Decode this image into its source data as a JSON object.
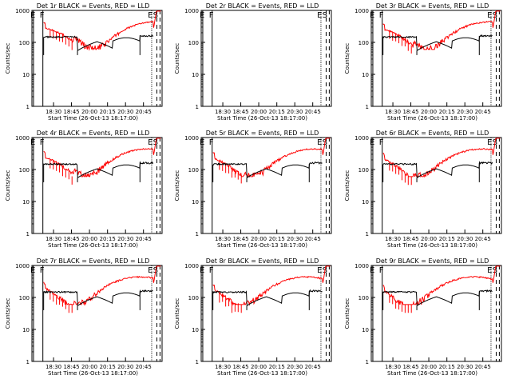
{
  "figure": {
    "xlabel": "Start Time (26-Oct-13 18:17:00)",
    "ylabel": "Counts/sec",
    "x_ticks": [
      "18:30",
      "18:45",
      "20:00",
      "20:15",
      "20:30",
      "20:45"
    ],
    "y_ticks": [
      "1",
      "10",
      "100",
      "1000"
    ],
    "colors": {
      "events": "#000000",
      "lld": "#ff0000",
      "background": "#ffffff"
    },
    "marker_labels": [
      "E",
      "F",
      "E",
      "S"
    ]
  },
  "chart_data": [
    {
      "type": "line",
      "title": "Det 1r BLACK = Events, RED = LLD",
      "xlabel": "Start Time (26-Oct-13 18:17:00)",
      "ylabel": "Counts/sec",
      "yscale": "log",
      "ylim": [
        1,
        1000
      ],
      "has_events": true,
      "has_lld": true
    },
    {
      "type": "line",
      "title": "Det 2r BLACK = Events, RED = LLD",
      "xlabel": "Start Time (26-Oct-13 18:17:00)",
      "ylabel": "Counts/sec",
      "yscale": "log",
      "ylim": [
        1,
        1000
      ],
      "has_events": false,
      "has_lld": false
    },
    {
      "type": "line",
      "title": "Det 3r BLACK = Events, RED = LLD",
      "xlabel": "Start Time (26-Oct-13 18:17:00)",
      "ylabel": "Counts/sec",
      "yscale": "log",
      "ylim": [
        1,
        1000
      ],
      "has_events": true,
      "has_lld": true
    },
    {
      "type": "line",
      "title": "Det 4r BLACK = Events, RED = LLD",
      "xlabel": "Start Time (26-Oct-13 18:17:00)",
      "ylabel": "Counts/sec",
      "yscale": "log",
      "ylim": [
        1,
        1000
      ],
      "has_events": true,
      "has_lld": true
    },
    {
      "type": "line",
      "title": "Det 5r BLACK = Events, RED = LLD",
      "xlabel": "Start Time (26-Oct-13 18:17:00)",
      "ylabel": "Counts/sec",
      "yscale": "log",
      "ylim": [
        1,
        1000
      ],
      "has_events": true,
      "has_lld": true
    },
    {
      "type": "line",
      "title": "Det 6r BLACK = Events, RED = LLD",
      "xlabel": "Start Time (26-Oct-13 18:17:00)",
      "ylabel": "Counts/sec",
      "yscale": "log",
      "ylim": [
        1,
        1000
      ],
      "has_events": true,
      "has_lld": true
    },
    {
      "type": "line",
      "title": "Det 7r BLACK = Events, RED = LLD",
      "xlabel": "Start Time (26-Oct-13 18:17:00)",
      "ylabel": "Counts/sec",
      "yscale": "log",
      "ylim": [
        1,
        1000
      ],
      "has_events": true,
      "has_lld": true
    },
    {
      "type": "line",
      "title": "Det 8r BLACK = Events, RED = LLD",
      "xlabel": "Start Time (26-Oct-13 18:17:00)",
      "ylabel": "Counts/sec",
      "yscale": "log",
      "ylim": [
        1,
        1000
      ],
      "has_events": true,
      "has_lld": true
    },
    {
      "type": "line",
      "title": "Det 9r BLACK = Events, RED = LLD",
      "xlabel": "Start Time (26-Oct-13 18:17:00)",
      "ylabel": "Counts/sec",
      "yscale": "log",
      "ylim": [
        1,
        1000
      ],
      "has_events": true,
      "has_lld": true
    }
  ]
}
